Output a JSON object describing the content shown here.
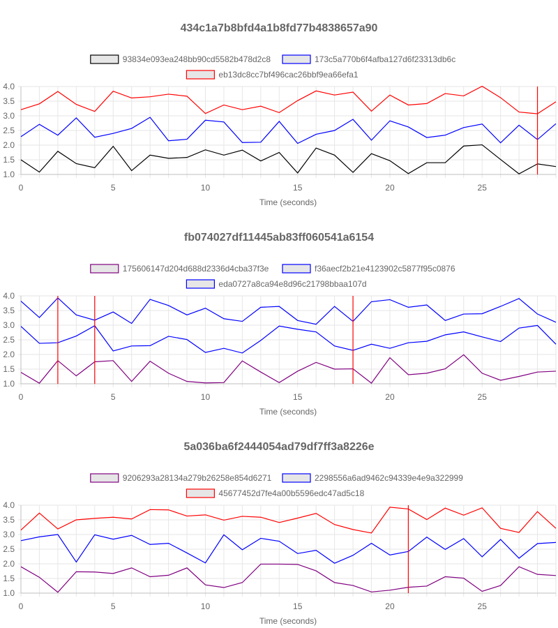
{
  "chart_data": [
    {
      "type": "line",
      "title": "434c1a7b8bfd4a1b8fd77b4838657a90",
      "xlabel": "Time (seconds)",
      "ylabel": "",
      "xlim": [
        0,
        29
      ],
      "ylim": [
        1.0,
        4.0
      ],
      "x_ticks": [
        0,
        5,
        10,
        15,
        20,
        25
      ],
      "y_ticks": [
        1.0,
        1.5,
        2.0,
        2.5,
        3.0,
        3.5,
        4.0
      ],
      "grid": true,
      "legend_position": "top",
      "x": [
        0,
        1,
        2,
        3,
        4,
        5,
        6,
        7,
        8,
        9,
        10,
        11,
        12,
        13,
        14,
        15,
        16,
        17,
        18,
        19,
        20,
        21,
        22,
        23,
        24,
        25,
        26,
        27,
        28,
        29
      ],
      "series": [
        {
          "name": "93834e093ea248bb90cd5582b478d2c8",
          "color": "#000000",
          "values": [
            1.5,
            1.08,
            1.79,
            1.37,
            1.23,
            1.96,
            1.13,
            1.66,
            1.55,
            1.58,
            1.84,
            1.66,
            1.83,
            1.46,
            1.75,
            1.05,
            1.9,
            1.66,
            1.07,
            1.71,
            1.47,
            1.03,
            1.4,
            1.4,
            1.97,
            2.01,
            1.51,
            1.02,
            1.36,
            1.27
          ]
        },
        {
          "name": "173c5a770b6f4afba127d6f23313db6c",
          "color": "#0000ff",
          "values": [
            2.29,
            2.71,
            2.34,
            2.93,
            2.27,
            2.4,
            2.57,
            2.95,
            2.15,
            2.2,
            2.85,
            2.79,
            2.09,
            2.1,
            2.81,
            2.06,
            2.37,
            2.5,
            2.88,
            2.17,
            2.83,
            2.62,
            2.26,
            2.34,
            2.6,
            2.72,
            2.08,
            2.68,
            2.19,
            2.73
          ]
        },
        {
          "name": "eb13dc8cc7bf496cac26bbf9ea66efa1",
          "color": "#ff0000",
          "values": [
            3.21,
            3.41,
            3.83,
            3.39,
            3.15,
            3.84,
            3.61,
            3.65,
            3.74,
            3.67,
            3.08,
            3.37,
            3.21,
            3.33,
            3.11,
            3.52,
            3.85,
            3.71,
            3.81,
            3.16,
            3.71,
            3.37,
            3.42,
            3.76,
            3.68,
            4.01,
            3.62,
            3.13,
            3.07,
            3.48
          ]
        }
      ],
      "vlines": [
        {
          "x": 28,
          "color": "#ff0000"
        }
      ]
    },
    {
      "type": "line",
      "title": "fb074027df11445ab83ff060541a6154",
      "xlabel": "Time (seconds)",
      "ylabel": "",
      "xlim": [
        0,
        29
      ],
      "ylim": [
        1.0,
        4.0
      ],
      "x_ticks": [
        0,
        5,
        10,
        15,
        20,
        25
      ],
      "y_ticks": [
        1.0,
        1.5,
        2.0,
        2.5,
        3.0,
        3.5,
        4.0
      ],
      "grid": true,
      "legend_position": "top",
      "x": [
        0,
        1,
        2,
        3,
        4,
        5,
        6,
        7,
        8,
        9,
        10,
        11,
        12,
        13,
        14,
        15,
        16,
        17,
        18,
        19,
        20,
        21,
        22,
        23,
        24,
        25,
        26,
        27,
        28,
        29
      ],
      "series": [
        {
          "name": "175606147d204d688d2336d4cba37f3e",
          "color": "#800080",
          "values": [
            1.39,
            1.02,
            1.79,
            1.27,
            1.75,
            1.79,
            1.08,
            1.77,
            1.36,
            1.08,
            1.03,
            1.04,
            1.78,
            1.4,
            1.04,
            1.43,
            1.73,
            1.5,
            1.51,
            1.02,
            1.89,
            1.31,
            1.36,
            1.51,
            1.99,
            1.36,
            1.12,
            1.25,
            1.4,
            1.43
          ]
        },
        {
          "name": "f36aecf2b21e4123902c5877f95c0876",
          "color": "#0000ff",
          "values": [
            2.96,
            2.38,
            2.4,
            2.63,
            2.98,
            2.12,
            2.29,
            2.3,
            2.62,
            2.51,
            2.07,
            2.21,
            2.05,
            2.48,
            2.97,
            2.86,
            2.77,
            2.29,
            2.14,
            2.35,
            2.21,
            2.4,
            2.45,
            2.67,
            2.77,
            2.6,
            2.44,
            2.9,
            2.99,
            2.35
          ]
        },
        {
          "name": "eda0727a8ca94e8d96c21798bbaa107d",
          "color": "#0000ff",
          "values": [
            3.82,
            3.26,
            3.93,
            3.35,
            3.17,
            3.45,
            3.06,
            3.88,
            3.67,
            3.35,
            3.58,
            3.22,
            3.13,
            3.61,
            3.64,
            3.16,
            3.03,
            3.64,
            3.13,
            3.8,
            3.87,
            3.61,
            3.69,
            3.16,
            3.38,
            3.39,
            3.64,
            3.91,
            3.38,
            3.1
          ]
        }
      ],
      "vlines": [
        {
          "x": 2,
          "color": "#ff0000"
        },
        {
          "x": 4,
          "color": "#ff0000"
        },
        {
          "x": 18,
          "color": "#ff0000"
        }
      ]
    },
    {
      "type": "line",
      "title": "5a036ba6f2444054ad79df7ff3a8226e",
      "xlabel": "Time (seconds)",
      "ylabel": "",
      "xlim": [
        0,
        29
      ],
      "ylim": [
        1.0,
        4.0
      ],
      "x_ticks": [
        0,
        5,
        10,
        15,
        20,
        25
      ],
      "y_ticks": [
        1.0,
        1.5,
        2.0,
        2.5,
        3.0,
        3.5,
        4.0
      ],
      "grid": true,
      "legend_position": "top",
      "x": [
        0,
        1,
        2,
        3,
        4,
        5,
        6,
        7,
        8,
        9,
        10,
        11,
        12,
        13,
        14,
        15,
        16,
        17,
        18,
        19,
        20,
        21,
        22,
        23,
        24,
        25,
        26,
        27,
        28,
        29
      ],
      "series": [
        {
          "name": "9206293a28134a279b26258e854d6271",
          "color": "#800080",
          "values": [
            1.9,
            1.54,
            1.03,
            1.73,
            1.72,
            1.67,
            1.86,
            1.56,
            1.61,
            1.86,
            1.28,
            1.19,
            1.36,
            1.99,
            1.99,
            1.98,
            1.76,
            1.36,
            1.26,
            1.04,
            1.1,
            1.2,
            1.24,
            1.56,
            1.51,
            1.06,
            1.26,
            1.9,
            1.64,
            1.6
          ]
        },
        {
          "name": "2298556a6ad9462c94339e4e9a322999",
          "color": "#0000ff",
          "values": [
            2.79,
            2.92,
            3.0,
            2.06,
            2.99,
            2.84,
            2.97,
            2.66,
            2.7,
            2.37,
            2.03,
            2.99,
            2.48,
            2.87,
            2.77,
            2.35,
            2.46,
            2.02,
            2.29,
            2.7,
            2.3,
            2.42,
            2.91,
            2.49,
            2.86,
            2.24,
            2.83,
            2.19,
            2.69,
            2.73
          ]
        },
        {
          "name": "45677452d7fe4a00b5596edc47ad5c18",
          "color": "#ff0000",
          "values": [
            3.15,
            3.73,
            3.19,
            3.5,
            3.55,
            3.59,
            3.53,
            3.85,
            3.84,
            3.63,
            3.67,
            3.49,
            3.62,
            3.59,
            3.41,
            3.56,
            3.72,
            3.34,
            3.17,
            3.05,
            3.93,
            3.87,
            3.51,
            3.9,
            3.66,
            3.91,
            3.21,
            3.07,
            3.78,
            3.21
          ]
        }
      ],
      "vlines": [
        {
          "x": 21,
          "color": "#ff0000"
        }
      ]
    }
  ]
}
